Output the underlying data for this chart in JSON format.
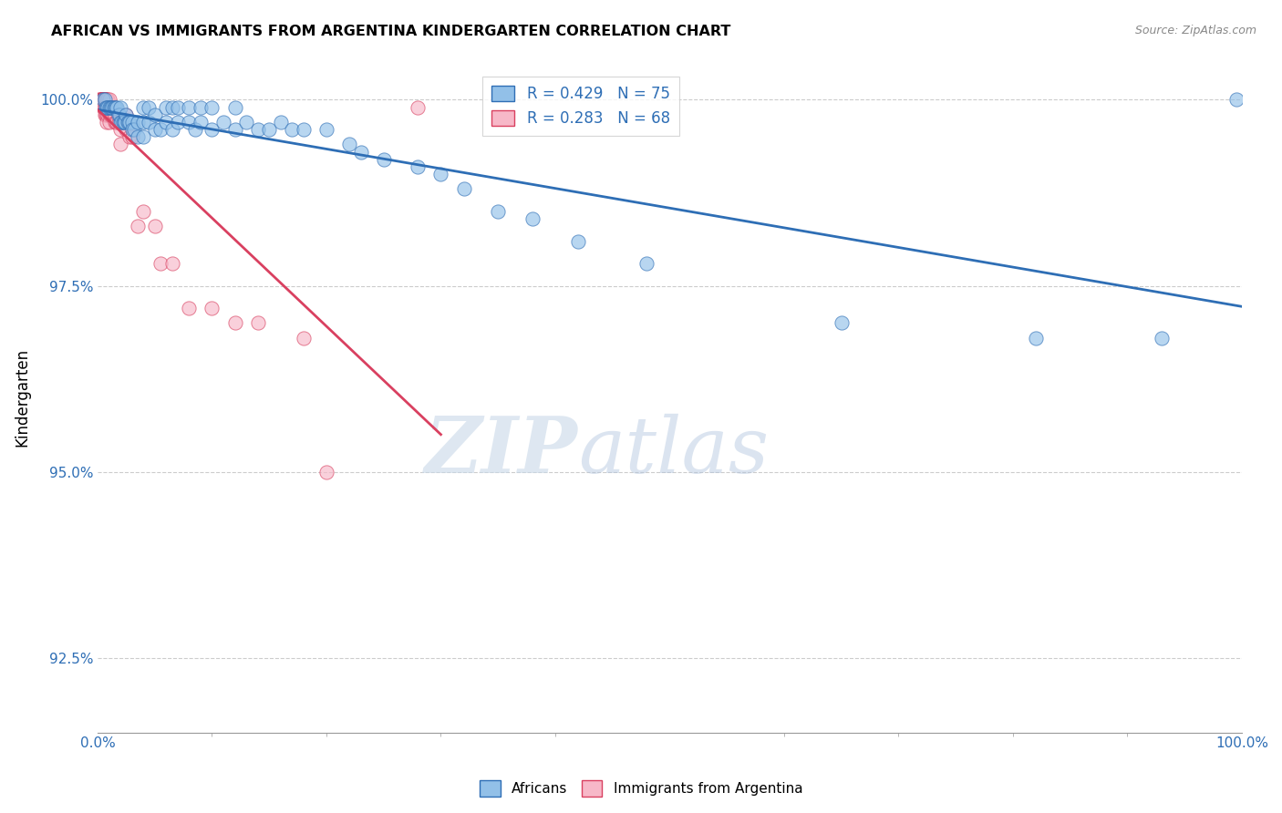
{
  "title": "AFRICAN VS IMMIGRANTS FROM ARGENTINA KINDERGARTEN CORRELATION CHART",
  "source": "Source: ZipAtlas.com",
  "ylabel": "Kindergarten",
  "xlim": [
    0,
    1
  ],
  "ylim": [
    0.915,
    1.005
  ],
  "yticks": [
    0.925,
    0.95,
    0.975,
    1.0
  ],
  "ytick_labels": [
    "92.5%",
    "95.0%",
    "97.5%",
    "100.0%"
  ],
  "xtick_labels_left": "0.0%",
  "xtick_labels_right": "100.0%",
  "legend_r_blue": "R = 0.429",
  "legend_n_blue": "N = 75",
  "legend_r_pink": "R = 0.283",
  "legend_n_pink": "N = 68",
  "blue_color": "#92c0e8",
  "pink_color": "#f7b8c8",
  "trendline_blue_color": "#2e6eb5",
  "trendline_pink_color": "#d94060",
  "watermark_zip": "ZIP",
  "watermark_atlas": "atlas",
  "africans_label": "Africans",
  "argentina_label": "Immigrants from Argentina",
  "blue_scatter_x": [
    0.005,
    0.006,
    0.007,
    0.008,
    0.009,
    0.01,
    0.011,
    0.012,
    0.013,
    0.014,
    0.015,
    0.016,
    0.017,
    0.018,
    0.019,
    0.02,
    0.02,
    0.021,
    0.022,
    0.023,
    0.024,
    0.025,
    0.026,
    0.027,
    0.028,
    0.03,
    0.03,
    0.032,
    0.035,
    0.035,
    0.04,
    0.04,
    0.04,
    0.045,
    0.045,
    0.05,
    0.05,
    0.055,
    0.06,
    0.06,
    0.065,
    0.065,
    0.07,
    0.07,
    0.08,
    0.08,
    0.085,
    0.09,
    0.09,
    0.1,
    0.1,
    0.11,
    0.12,
    0.12,
    0.13,
    0.14,
    0.15,
    0.16,
    0.17,
    0.18,
    0.2,
    0.22,
    0.23,
    0.25,
    0.28,
    0.3,
    0.32,
    0.35,
    0.38,
    0.42,
    0.48,
    0.65,
    0.82,
    0.93,
    0.995
  ],
  "blue_scatter_y": [
    1.0,
    1.0,
    0.999,
    0.999,
    0.999,
    0.999,
    0.999,
    0.999,
    0.999,
    0.999,
    0.999,
    0.999,
    0.999,
    0.998,
    0.998,
    0.999,
    0.997,
    0.997,
    0.997,
    0.997,
    0.997,
    0.998,
    0.997,
    0.997,
    0.997,
    0.997,
    0.996,
    0.996,
    0.997,
    0.995,
    0.999,
    0.997,
    0.995,
    0.999,
    0.997,
    0.998,
    0.996,
    0.996,
    0.999,
    0.997,
    0.999,
    0.996,
    0.999,
    0.997,
    0.999,
    0.997,
    0.996,
    0.999,
    0.997,
    0.999,
    0.996,
    0.997,
    0.999,
    0.996,
    0.997,
    0.996,
    0.996,
    0.997,
    0.996,
    0.996,
    0.996,
    0.994,
    0.993,
    0.992,
    0.991,
    0.99,
    0.988,
    0.985,
    0.984,
    0.981,
    0.978,
    0.97,
    0.968,
    0.968,
    1.0
  ],
  "pink_scatter_x": [
    0.002,
    0.002,
    0.003,
    0.003,
    0.003,
    0.003,
    0.004,
    0.004,
    0.004,
    0.004,
    0.005,
    0.005,
    0.005,
    0.005,
    0.005,
    0.005,
    0.005,
    0.006,
    0.006,
    0.006,
    0.006,
    0.006,
    0.006,
    0.006,
    0.007,
    0.007,
    0.007,
    0.007,
    0.008,
    0.008,
    0.008,
    0.008,
    0.009,
    0.009,
    0.009,
    0.01,
    0.01,
    0.01,
    0.01,
    0.011,
    0.012,
    0.013,
    0.014,
    0.015,
    0.015,
    0.016,
    0.017,
    0.018,
    0.019,
    0.02,
    0.02,
    0.022,
    0.025,
    0.025,
    0.028,
    0.03,
    0.035,
    0.04,
    0.05,
    0.055,
    0.065,
    0.08,
    0.1,
    0.12,
    0.14,
    0.18,
    0.2,
    0.28
  ],
  "pink_scatter_y": [
    1.0,
    1.0,
    1.0,
    1.0,
    1.0,
    1.0,
    1.0,
    1.0,
    1.0,
    1.0,
    1.0,
    1.0,
    1.0,
    1.0,
    1.0,
    1.0,
    0.999,
    1.0,
    1.0,
    1.0,
    1.0,
    1.0,
    0.999,
    0.998,
    1.0,
    1.0,
    0.999,
    0.998,
    1.0,
    0.999,
    0.998,
    0.997,
    1.0,
    0.999,
    0.998,
    1.0,
    0.999,
    0.998,
    0.997,
    0.998,
    0.998,
    0.998,
    0.998,
    0.998,
    0.997,
    0.997,
    0.997,
    0.997,
    0.997,
    0.996,
    0.994,
    0.997,
    0.998,
    0.996,
    0.995,
    0.995,
    0.983,
    0.985,
    0.983,
    0.978,
    0.978,
    0.972,
    0.972,
    0.97,
    0.97,
    0.968,
    0.95,
    0.999
  ]
}
